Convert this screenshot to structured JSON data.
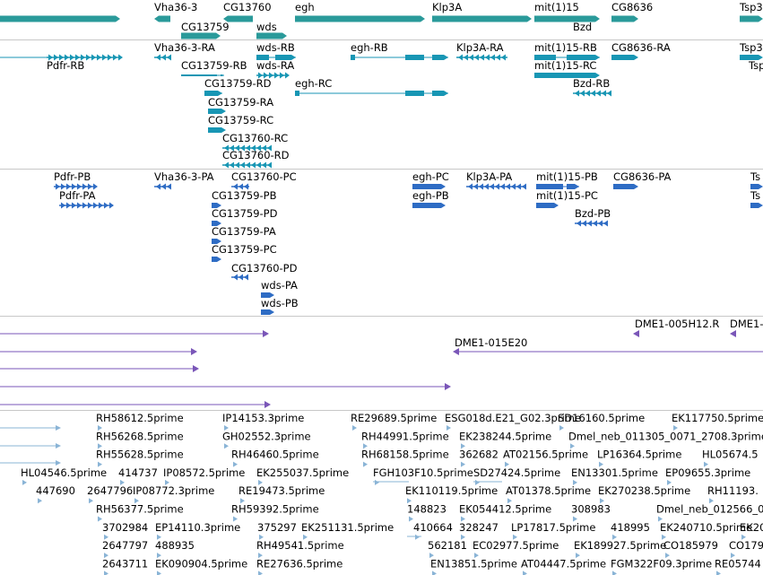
{
  "browser": {
    "colors": {
      "gene": "#2a9a9a",
      "transcript": "#1896b4",
      "protein": "#2e6cc4",
      "clone": "#7a56b8",
      "est": "#8ab4d6",
      "text": "#000000",
      "separator": "#c8c8c8"
    },
    "tracks": [
      {
        "id": "genes",
        "features": [
          {
            "label": "",
            "dir": "right"
          },
          {
            "label": "Vha36-3",
            "dir": "left"
          },
          {
            "label": "CG13760",
            "dir": "left"
          },
          {
            "label": "egh",
            "dir": "right"
          },
          {
            "label": "Klp3A",
            "dir": "right"
          },
          {
            "label": "mit(1)15",
            "dir": "right"
          },
          {
            "label": "CG8636",
            "dir": "right"
          },
          {
            "label": "Tsp3",
            "dir": "right"
          },
          {
            "label": "CG13759",
            "dir": "right"
          },
          {
            "label": "wds",
            "dir": "right"
          },
          {
            "label": "Bzd",
            "dir": "left"
          }
        ]
      },
      {
        "id": "transcripts",
        "features": [
          {
            "label": "",
            "dir": "right"
          },
          {
            "label": "Pdfr-RB",
            "dir": "right"
          },
          {
            "label": "Vha36-3-RA",
            "dir": "left"
          },
          {
            "label": "wds-RB",
            "dir": "right"
          },
          {
            "label": "egh-RB",
            "dir": "right"
          },
          {
            "label": "Klp3A-RA",
            "dir": "left"
          },
          {
            "label": "mit(1)15-RB",
            "dir": "right"
          },
          {
            "label": "CG8636-RA",
            "dir": "right"
          },
          {
            "label": "Tsp3",
            "dir": "right"
          },
          {
            "label": "CG13759-RB",
            "dir": "right"
          },
          {
            "label": "wds-RA",
            "dir": "right"
          },
          {
            "label": "mit(1)15-RC",
            "dir": "right"
          },
          {
            "label": "Tsp",
            "dir": "right"
          },
          {
            "label": "CG13759-RD",
            "dir": "right"
          },
          {
            "label": "egh-RC",
            "dir": "right"
          },
          {
            "label": "Bzd-RB",
            "dir": "left"
          },
          {
            "label": "CG13759-RA",
            "dir": "right"
          },
          {
            "label": "CG13759-RC",
            "dir": "right"
          },
          {
            "label": "CG13760-RC",
            "dir": "left"
          },
          {
            "label": "CG13760-RD",
            "dir": "left"
          }
        ]
      },
      {
        "id": "proteins",
        "features": [
          {
            "label": "Pdfr-PB",
            "dir": "right"
          },
          {
            "label": "Pdfr-PA",
            "dir": "right"
          },
          {
            "label": "Vha36-3-PA",
            "dir": "left"
          },
          {
            "label": "CG13760-PC",
            "dir": "left"
          },
          {
            "label": "egh-PC",
            "dir": "right"
          },
          {
            "label": "egh-PB",
            "dir": "right"
          },
          {
            "label": "Klp3A-PA",
            "dir": "left"
          },
          {
            "label": "mit(1)15-PB",
            "dir": "right"
          },
          {
            "label": "mit(1)15-PC",
            "dir": "right"
          },
          {
            "label": "CG8636-PA",
            "dir": "right"
          },
          {
            "label": "Bzd-PB",
            "dir": "left"
          },
          {
            "label": "Ts",
            "dir": "right"
          },
          {
            "label": "Ts",
            "dir": "right"
          },
          {
            "label": "CG13759-PB",
            "dir": "right"
          },
          {
            "label": "CG13759-PD",
            "dir": "right"
          },
          {
            "label": "CG13759-PA",
            "dir": "right"
          },
          {
            "label": "CG13759-PC",
            "dir": "right"
          },
          {
            "label": "CG13760-PD",
            "dir": "left"
          },
          {
            "label": "wds-PA",
            "dir": "right"
          },
          {
            "label": "wds-PB",
            "dir": "right"
          }
        ]
      },
      {
        "id": "clones",
        "features": [
          {
            "label": "DME1-005H12.R",
            "dir": "left"
          },
          {
            "label": "DME1-",
            "dir": "right"
          },
          {
            "label": "",
            "dir": "right"
          },
          {
            "label": "DME1-015E20",
            "dir": "left"
          },
          {
            "label": "",
            "dir": "right"
          },
          {
            "label": "",
            "dir": "right"
          },
          {
            "label": "",
            "dir": "right"
          }
        ]
      },
      {
        "id": "ests",
        "labels": [
          "RH58612.5prime",
          "IP14153.3prime",
          "RE29689.5prime",
          "ESG018d.E21_G02.3prime",
          "SD16160.5prime",
          "EK117750.5prime",
          "RH56268.5prime",
          "GH02552.3prime",
          "RH44991.5prime",
          "EK238244.5prime",
          "Dmel_neb_011305_0071_2708.3prime",
          "RH55628.5prime",
          "RH46460.5prime",
          "RH68158.5prime",
          "362682",
          "AT02156.5prime",
          "LP16364.5prime",
          "HL05674.5",
          "HL04546.5prime",
          "414737",
          "IP08572.5prime",
          "EK255037.5prime",
          "FGH103F10.5prime",
          "SD27424.5prime",
          "EN13301.5prime",
          "EP09655.3prime",
          "447690",
          "2647796",
          "IP08772.3prime",
          "RE19473.5prime",
          "EK110119.5prime",
          "AT01378.5prime",
          "EK270238.5prime",
          "RH11193.",
          "RH56377.5prime",
          "RH59392.5prime",
          "148823",
          "EK054412.5prime",
          "308983",
          "Dmel_neb_012566_0378_0",
          "3702984",
          "EP14110.3prime",
          "375297",
          "EK251131.5prime",
          "410664",
          "328247",
          "LP17817.5prime",
          "418995",
          "EK240710.5prime",
          "EK20",
          "2647797",
          "488935",
          "RH49541.5prime",
          "562181",
          "EC02977.5prime",
          "EK189927.5prime",
          "CO185979",
          "CO179",
          "2643711",
          "EK090904.5prime",
          "RE27636.5prime",
          "EN13851.5prime",
          "AT04447.5prime",
          "FGM322F09.3prime",
          "RE05744"
        ]
      }
    ]
  }
}
